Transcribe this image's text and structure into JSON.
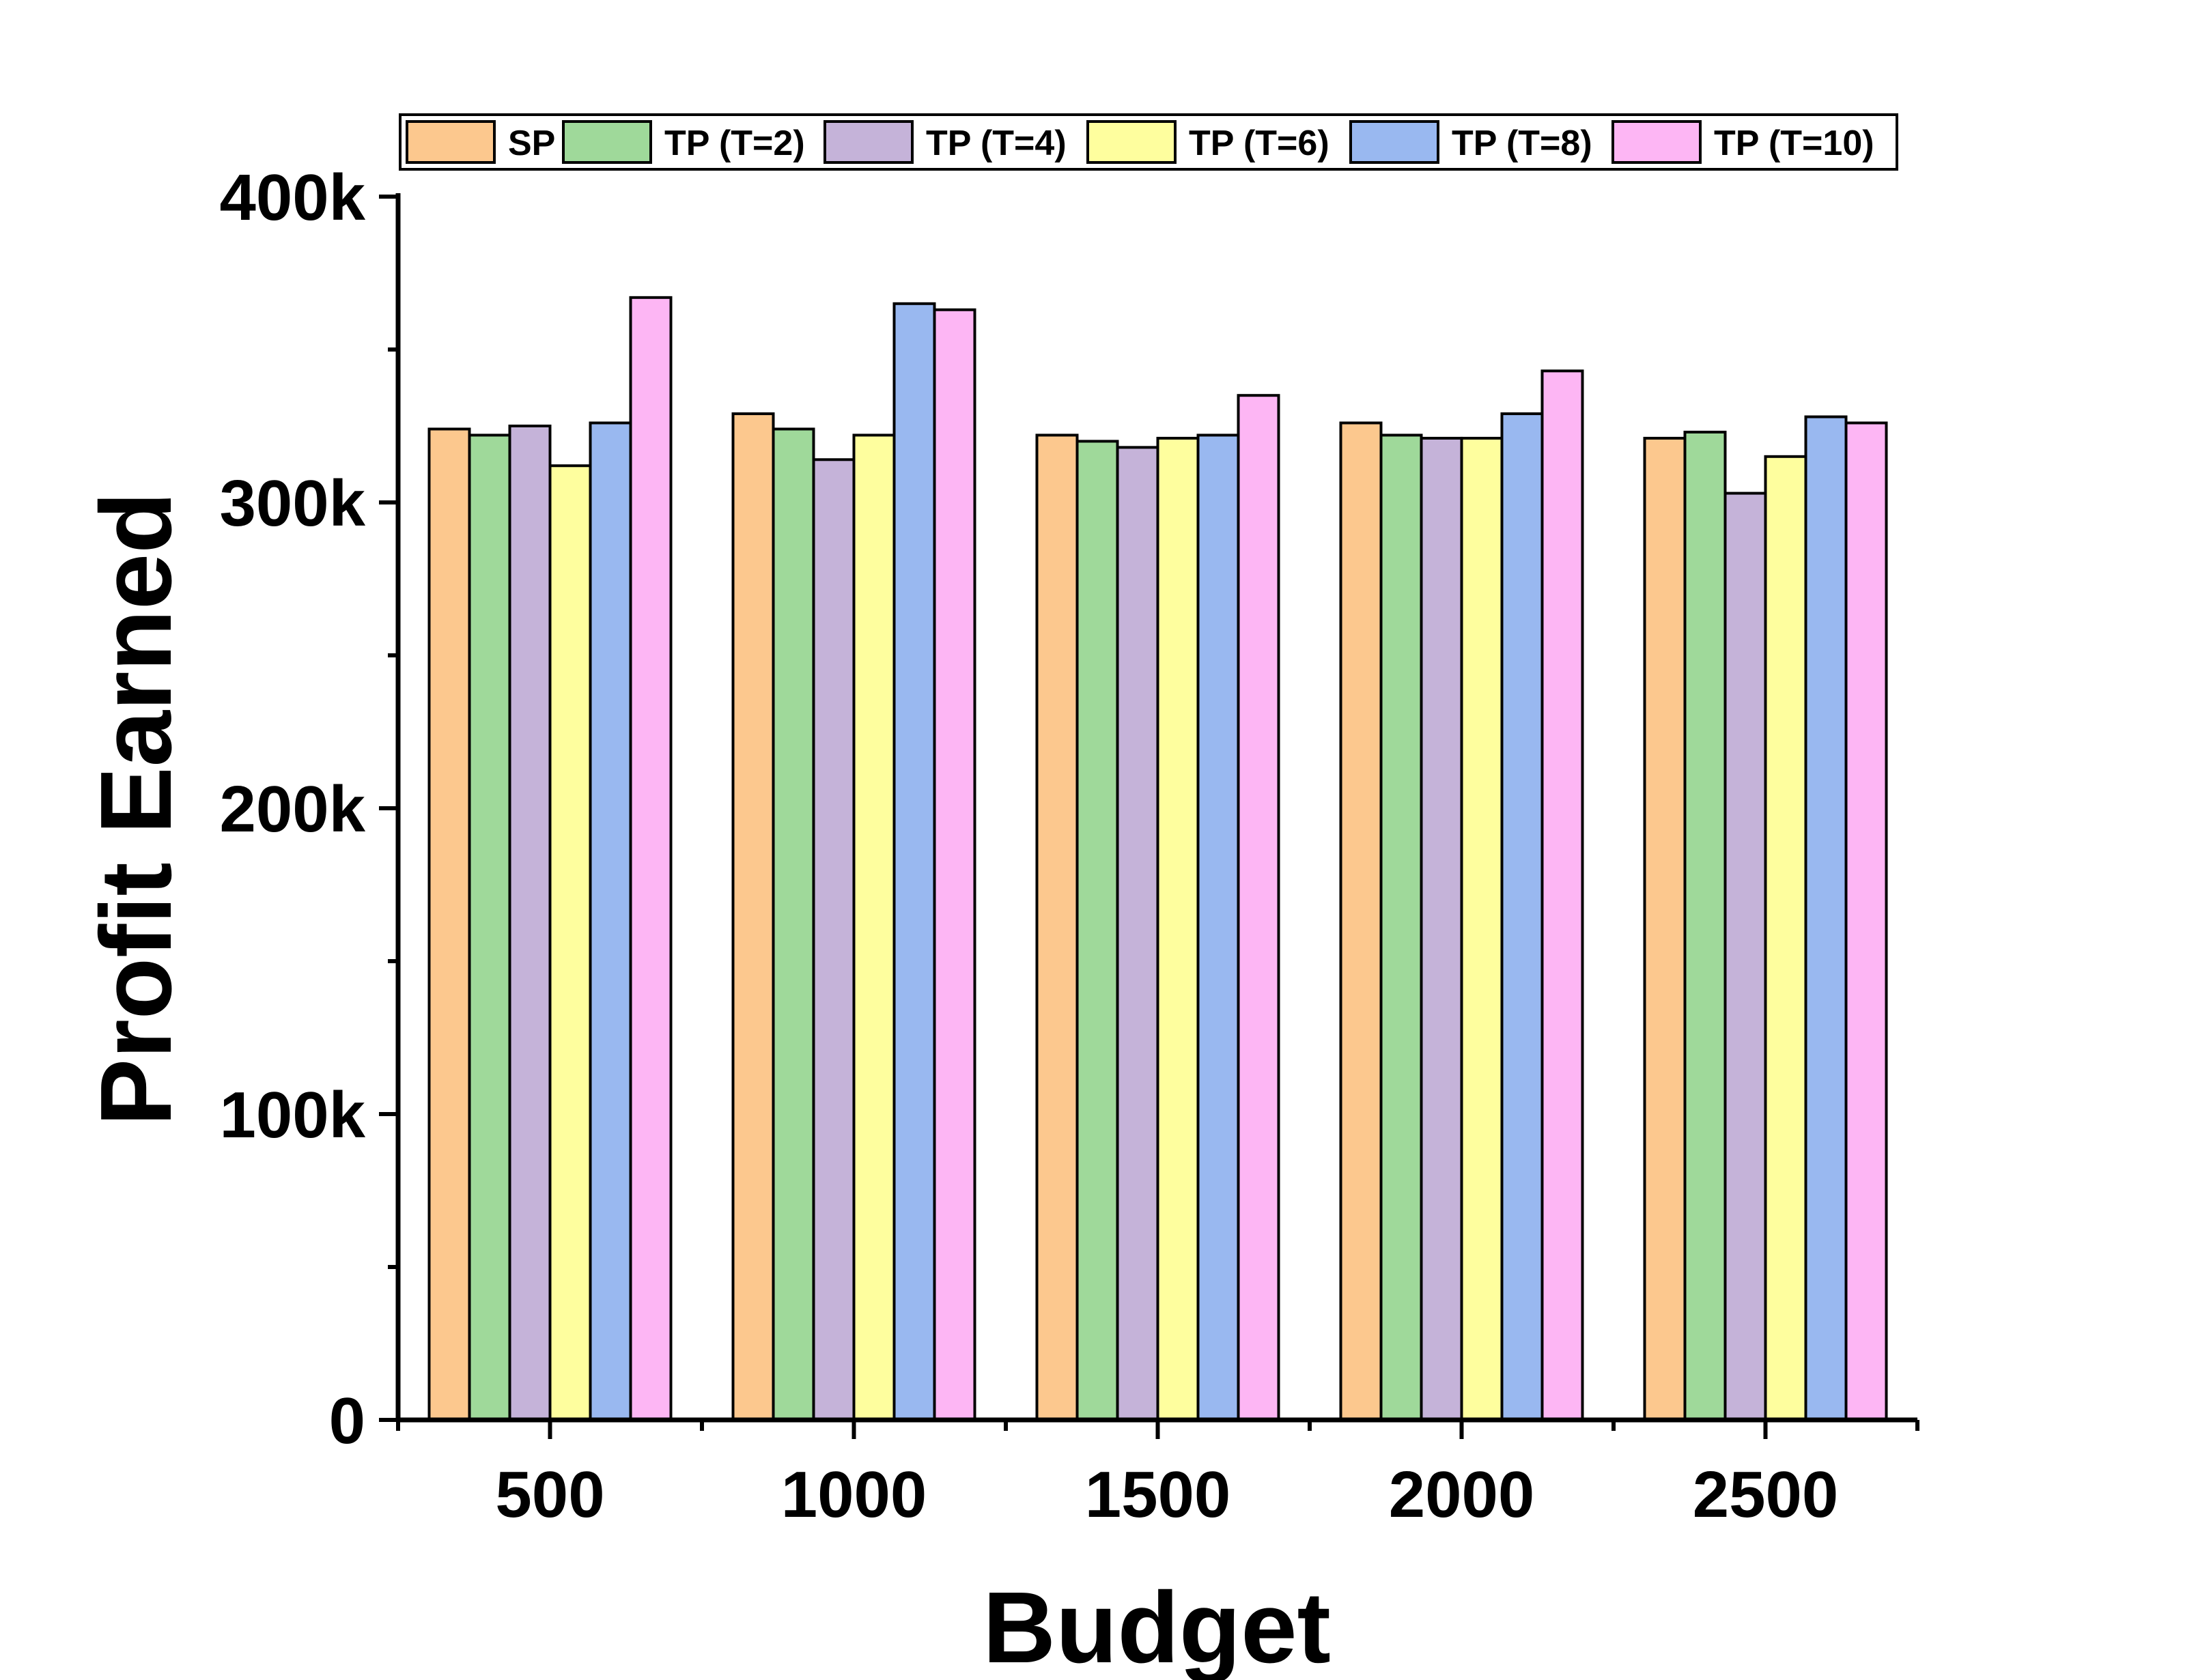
{
  "chart_data": {
    "type": "bar",
    "xlabel": "Budget",
    "ylabel": "Profit Earned",
    "categories": [
      "500",
      "1000",
      "1500",
      "2000",
      "2500"
    ],
    "ylim": [
      0,
      400000
    ],
    "yticks": [
      {
        "value": 0,
        "label": "0"
      },
      {
        "value": 100000,
        "label": "100k"
      },
      {
        "value": 200000,
        "label": "200k"
      },
      {
        "value": 300000,
        "label": "300k"
      },
      {
        "value": 400000,
        "label": "400k"
      }
    ],
    "legend_position": "top",
    "grid": false,
    "series": [
      {
        "name": "SP",
        "color": "#fcc88e",
        "values": [
          324000,
          329000,
          322000,
          326000,
          321000
        ]
      },
      {
        "name": "TP (T=2)",
        "color": "#9fd99a",
        "values": [
          322000,
          324000,
          320000,
          322000,
          323000
        ]
      },
      {
        "name": "TP (T=4)",
        "color": "#c5b3d9",
        "values": [
          325000,
          314000,
          318000,
          321000,
          303000
        ]
      },
      {
        "name": "TP (T=6)",
        "color": "#fefe9e",
        "values": [
          312000,
          322000,
          321000,
          321000,
          315000
        ]
      },
      {
        "name": "TP (T=8)",
        "color": "#99b8f0",
        "values": [
          326000,
          365000,
          322000,
          329000,
          328000
        ]
      },
      {
        "name": "TP (T=10)",
        "color": "#fdb6f4",
        "values": [
          367000,
          363000,
          335000,
          343000,
          326000
        ]
      }
    ]
  }
}
